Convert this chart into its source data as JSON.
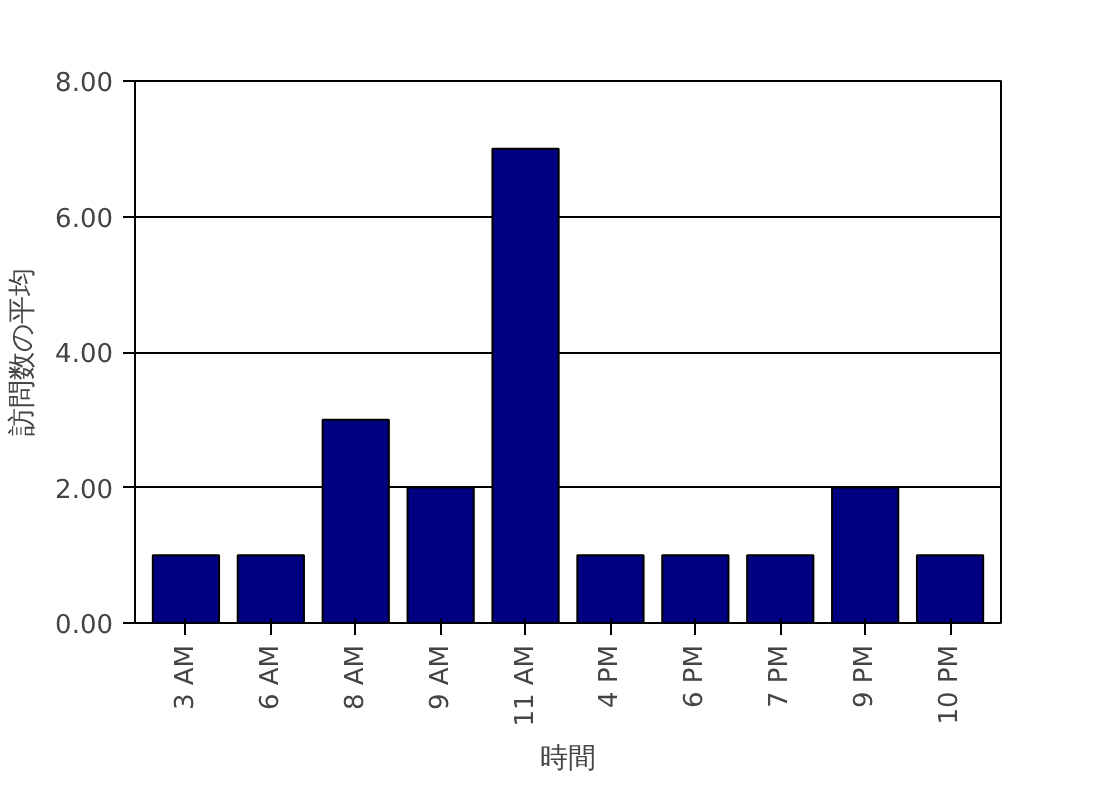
{
  "chart_data": {
    "type": "bar",
    "xlabel": "時間",
    "ylabel": "訪問数の平均",
    "categories": [
      "3 AM",
      "6 AM",
      "8 AM",
      "9 AM",
      "11 AM",
      "4 PM",
      "6 PM",
      "7 PM",
      "9 PM",
      "10 PM"
    ],
    "values": [
      1,
      1,
      3,
      2,
      7,
      1,
      1,
      1,
      2,
      1
    ],
    "color": "#000080",
    "ylim": [
      0,
      8
    ],
    "yticks": [
      {
        "value": 0,
        "label": "0.00"
      },
      {
        "value": 2,
        "label": "2.00"
      },
      {
        "value": 4,
        "label": "4.00"
      },
      {
        "value": 6,
        "label": "6.00"
      },
      {
        "value": 8,
        "label": "8.00"
      }
    ],
    "grid": "y"
  }
}
